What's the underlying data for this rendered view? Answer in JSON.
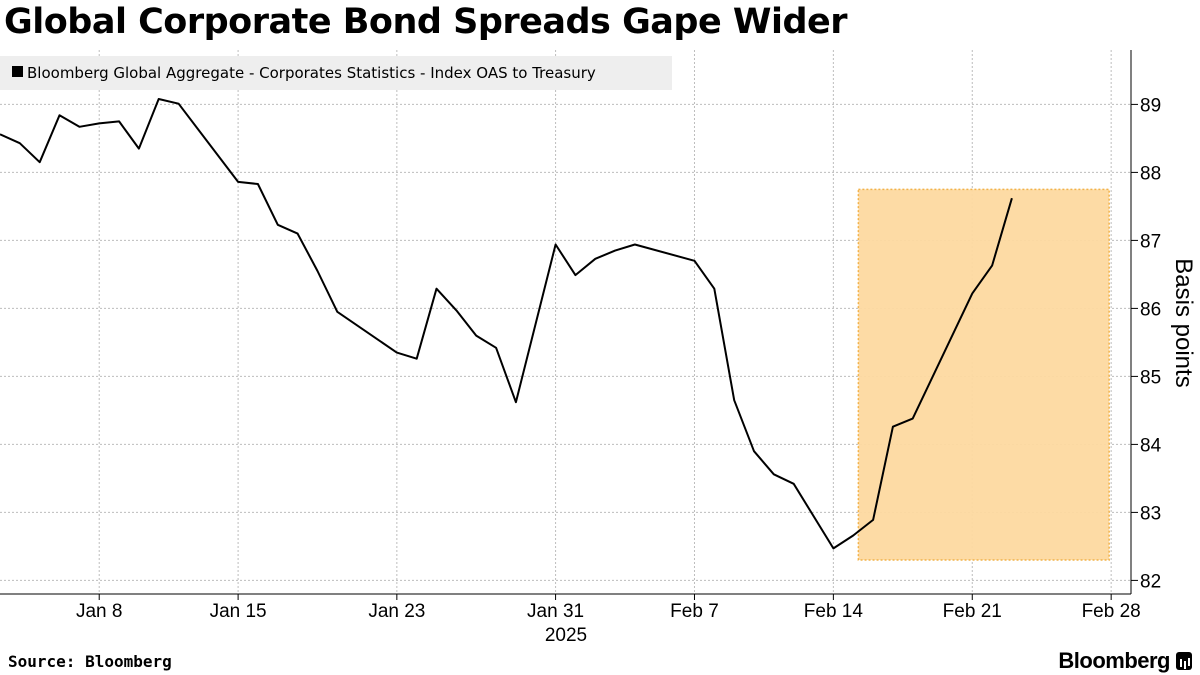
{
  "title": "Global Corporate Bond Spreads Gape Wider",
  "source": "Source: Bloomberg",
  "brand": "Bloomberg",
  "colors": {
    "line": "#000000",
    "highlight_fill": "#fdd9a0",
    "highlight_border": "#f2b24a",
    "grid": "#bdbdbd",
    "legend_bg": "#eeeeee"
  },
  "chart_data": {
    "type": "line",
    "title": "Global Corporate Bond Spreads Gape Wider",
    "ylabel": "Basis points",
    "xlabel": "",
    "ylim": [
      81.8,
      89.8
    ],
    "yticks": [
      82,
      83,
      84,
      85,
      86,
      87,
      88,
      89
    ],
    "x_range": [
      "2025-01-03",
      "2025-03-01"
    ],
    "xticks": [
      {
        "date": "2025-01-08",
        "label": "Jan 8"
      },
      {
        "date": "2025-01-15",
        "label": "Jan 15"
      },
      {
        "date": "2025-01-23",
        "label": "Jan 23"
      },
      {
        "date": "2025-01-31",
        "label": "Jan 31"
      },
      {
        "date": "2025-02-07",
        "label": "Feb 7"
      },
      {
        "date": "2025-02-14",
        "label": "Feb 14"
      },
      {
        "date": "2025-02-21",
        "label": "Feb 21"
      },
      {
        "date": "2025-02-28",
        "label": "Feb 28"
      }
    ],
    "year_label": "2025",
    "grid": true,
    "legend_position": "top-left",
    "series": [
      {
        "name": "Bloomberg Global Aggregate - Corporates Statistics - Index OAS to Treasury",
        "x": [
          "2025-01-03",
          "2025-01-04",
          "2025-01-05",
          "2025-01-06",
          "2025-01-07",
          "2025-01-08",
          "2025-01-09",
          "2025-01-10",
          "2025-01-11",
          "2025-01-12",
          "2025-01-15",
          "2025-01-16",
          "2025-01-17",
          "2025-01-18",
          "2025-01-19",
          "2025-01-20",
          "2025-01-23",
          "2025-01-24",
          "2025-01-25",
          "2025-01-26",
          "2025-01-27",
          "2025-01-28",
          "2025-01-29",
          "2025-01-31",
          "2025-02-01",
          "2025-02-02",
          "2025-02-03",
          "2025-02-04",
          "2025-02-07",
          "2025-02-08",
          "2025-02-09",
          "2025-02-10",
          "2025-02-11",
          "2025-02-12",
          "2025-02-14",
          "2025-02-15",
          "2025-02-16",
          "2025-02-17",
          "2025-02-18",
          "2025-02-21",
          "2025-02-22",
          "2025-02-23",
          "2025-02-24",
          "2025-02-26"
        ],
        "values": [
          88.56,
          88.43,
          88.15,
          88.84,
          88.67,
          88.72,
          88.75,
          88.35,
          89.08,
          89.01,
          87.86,
          87.83,
          87.23,
          87.1,
          86.55,
          85.95,
          85.35,
          85.26,
          86.29,
          85.97,
          85.6,
          85.42,
          84.62,
          86.94,
          86.49,
          86.73,
          86.85,
          86.94,
          86.7,
          86.29,
          84.65,
          83.9,
          83.56,
          83.42,
          82.47,
          82.66,
          82.89,
          84.26,
          84.38,
          86.22,
          86.63,
          87.62,
          null,
          null
        ]
      }
    ],
    "highlight": {
      "x_start": "2025-02-14",
      "x_end": "2025-02-28",
      "y_start": 82.3,
      "y_end": 87.75
    }
  }
}
